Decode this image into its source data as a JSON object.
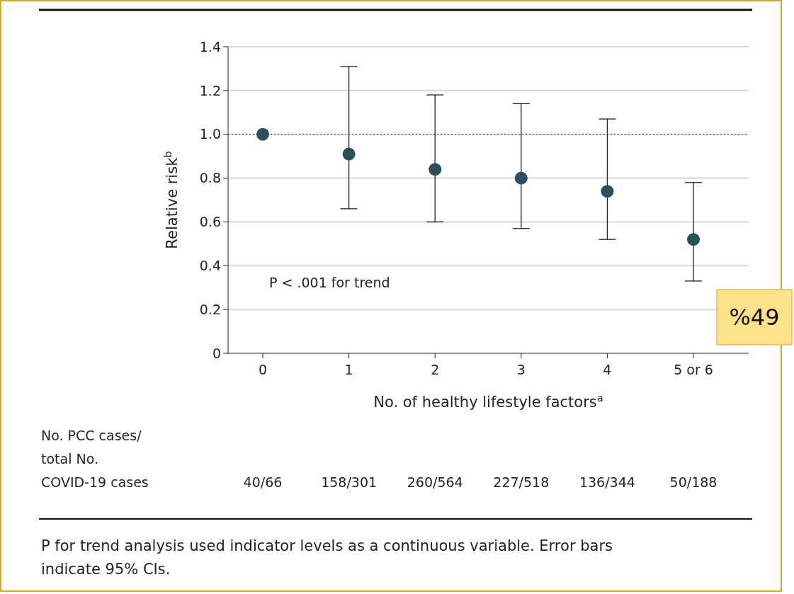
{
  "chart_data": {
    "type": "scatter",
    "xlabel": "No. of healthy lifestyle factors$^{a}$",
    "ylabel": "Relative risk$^{b}$",
    "categories": [
      "0",
      "1",
      "2",
      "3",
      "4",
      "5 or 6"
    ],
    "series": [
      {
        "color": "#2c4f5c",
        "values": [
          1.0,
          0.91,
          0.84,
          0.8,
          0.74,
          0.52
        ],
        "errors": [
          null,
          [
            0.66,
            1.31
          ],
          [
            0.6,
            1.18
          ],
          [
            0.57,
            1.14
          ],
          [
            0.52,
            1.07
          ],
          [
            0.33,
            0.78
          ]
        ]
      }
    ],
    "ylim": [
      0,
      1.4
    ],
    "yticks": [
      0,
      {
        "value": 0.2,
        "label": "0.2"
      },
      {
        "value": 0.4,
        "label": "0.4"
      },
      {
        "value": 0.6,
        "label": "0.6"
      },
      {
        "value": 0.8,
        "label": "0.8"
      },
      {
        "value": 1,
        "label": "1.0"
      },
      {
        "value": 1.2,
        "label": "1.2"
      },
      {
        "value": 1.4,
        "label": "1.4"
      }
    ],
    "grid": "y",
    "marker": "circle",
    "ref_lines": [
      {
        "axis": "y",
        "value": 1.0,
        "line_style": "dotted",
        "color": "#555555"
      }
    ],
    "annotations": [
      "P < .001 for trend",
      "No. PCC cases/\ntotal No.\nCOVID-19 cases",
      "P for trend analysis used indicator levels as a continuous variable. Error bars\nindicate 95% CIs.",
      "%49",
      "40/66",
      "158/301",
      "260/564",
      "227/518",
      "136/344",
      "50/188"
    ]
  }
}
